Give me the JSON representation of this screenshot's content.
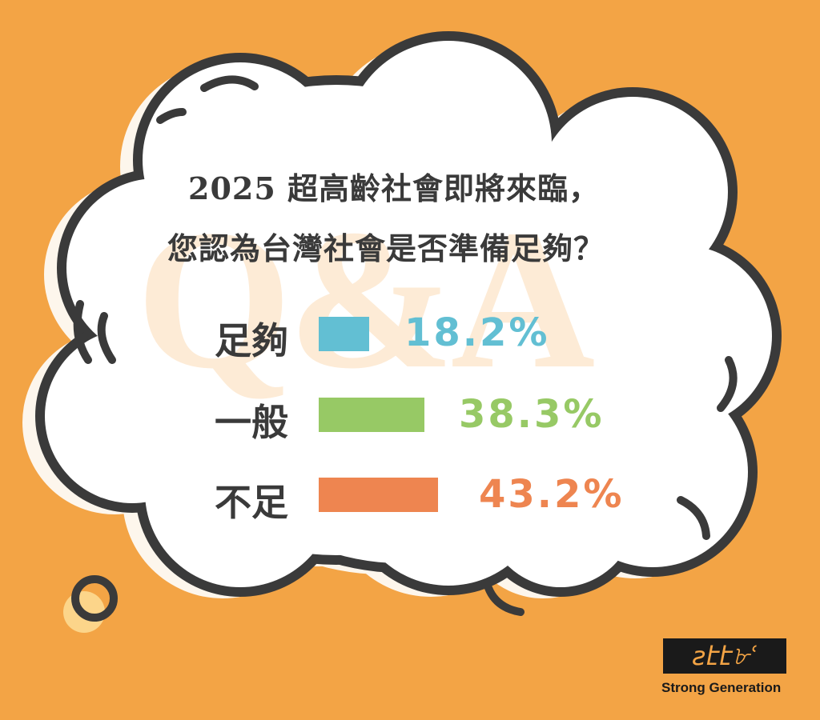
{
  "title_lines": [
    "2025 超高齡社會即將來臨，",
    "您認為台灣社會是否準備足夠？"
  ],
  "watermark": "Q&A",
  "chart_data": {
    "type": "bar",
    "orientation": "horizontal",
    "categories": [
      "足夠",
      "一般",
      "不足"
    ],
    "values": [
      18.2,
      38.3,
      43.2
    ],
    "value_labels": [
      "18.2%",
      "38.3%",
      "43.2%"
    ],
    "colors": [
      "#62bfd3",
      "#97c965",
      "#ee8550"
    ],
    "title": "2025 超高齡社會即將來臨，您認為台灣社會是否準備足夠？",
    "unit": "%",
    "grid": false
  },
  "logo": {
    "signature": "Stsꝉ",
    "text": "Strong Generation"
  },
  "colors": {
    "background": "#f3a445",
    "outline": "#3a3a3a",
    "cloud": "#ffffff"
  }
}
